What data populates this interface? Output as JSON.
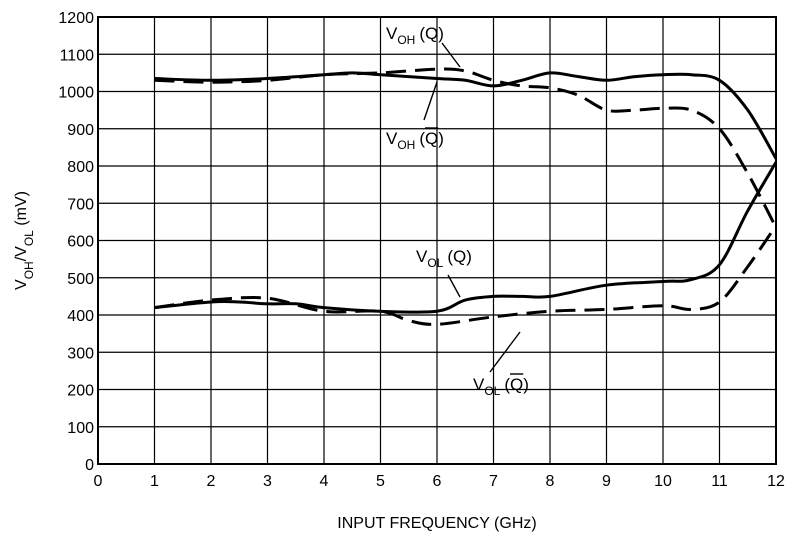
{
  "chart_data": {
    "type": "line",
    "title": "",
    "xlabel": "INPUT FREQUENCY (GHz)",
    "ylabel": "V_OH/V_OL (mV)",
    "ylabel_parts": [
      "V",
      "OH",
      "/V",
      "OL",
      " (mV)"
    ],
    "xlim": [
      0,
      12
    ],
    "ylim": [
      0,
      1200
    ],
    "x_ticks": [
      "0",
      "1",
      "2",
      "3",
      "4",
      "5",
      "6",
      "7",
      "8",
      "9",
      "10",
      "11",
      "12"
    ],
    "y_ticks": [
      "0",
      "100",
      "200",
      "300",
      "400",
      "500",
      "600",
      "700",
      "800",
      "900",
      "1000",
      "1100",
      "1200"
    ],
    "grid": true,
    "legend": "none",
    "series": [
      {
        "name": "V_OH (Q)",
        "style": "dashed",
        "label_main": "V",
        "label_sub": "OH",
        "label_arg": "(Q)",
        "label_bar": false,
        "x": [
          1,
          2,
          3,
          4,
          5,
          6,
          6.5,
          7,
          7.5,
          8,
          8.5,
          9,
          9.5,
          10,
          10.5,
          11,
          11.5,
          12
        ],
        "y": [
          1030,
          1025,
          1030,
          1045,
          1050,
          1060,
          1055,
          1030,
          1015,
          1010,
          990,
          950,
          950,
          955,
          950,
          900,
          780,
          635
        ]
      },
      {
        "name": "V_OH (Q̄)",
        "style": "solid",
        "label_main": "V",
        "label_sub": "OH",
        "label_arg": "(Q)",
        "label_bar": true,
        "x": [
          1,
          2,
          3,
          4,
          4.5,
          5,
          6,
          6.5,
          7,
          7.5,
          8,
          8.5,
          9,
          9.5,
          10,
          10.5,
          11,
          11.5,
          12
        ],
        "y": [
          1035,
          1030,
          1035,
          1045,
          1050,
          1045,
          1035,
          1030,
          1015,
          1030,
          1050,
          1040,
          1030,
          1040,
          1045,
          1045,
          1030,
          950,
          820
        ]
      },
      {
        "name": "V_OL (Q)",
        "style": "solid",
        "label_main": "V",
        "label_sub": "OL",
        "label_arg": "(Q)",
        "label_bar": false,
        "x": [
          1,
          2,
          2.5,
          3,
          3.5,
          4,
          5,
          6,
          6.5,
          7,
          7.5,
          8,
          9,
          10,
          10.5,
          11,
          11.5,
          12
        ],
        "y": [
          420,
          435,
          435,
          430,
          430,
          420,
          410,
          410,
          440,
          450,
          450,
          450,
          480,
          490,
          495,
          535,
          680,
          810
        ]
      },
      {
        "name": "V_OL (Q̄)",
        "style": "dashed",
        "label_main": "V",
        "label_sub": "OL",
        "label_arg": "(Q)",
        "label_bar": true,
        "x": [
          1,
          2,
          3,
          4,
          5,
          5.5,
          6,
          7,
          8,
          9,
          10,
          10.5,
          11,
          11.5,
          12
        ],
        "y": [
          420,
          440,
          445,
          410,
          410,
          385,
          375,
          395,
          410,
          415,
          425,
          415,
          435,
          530,
          640
        ]
      }
    ]
  }
}
